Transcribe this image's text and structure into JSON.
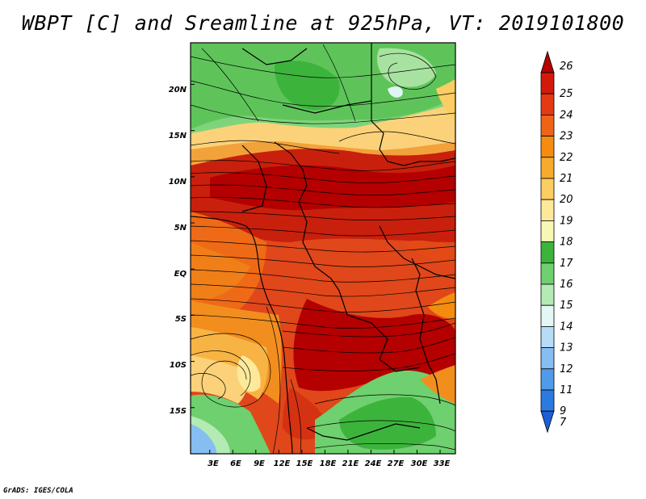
{
  "title": "WBPT [C] and Sreamline at 925hPa, VT: 2019101800",
  "credit": "GrADS: IGES/COLA",
  "map": {
    "lat_labels": [
      "20N",
      "15N",
      "10N",
      "5N",
      "EQ",
      "5S",
      "10S",
      "15S"
    ],
    "lat_values": [
      20,
      15,
      10,
      5,
      0,
      -5,
      -10,
      -15
    ],
    "lon_labels": [
      "3E",
      "6E",
      "9E",
      "12E",
      "15E",
      "18E",
      "21E",
      "24E",
      "27E",
      "30E",
      "33E"
    ],
    "lon_values": [
      3,
      6,
      9,
      12,
      15,
      18,
      21,
      24,
      27,
      30,
      33
    ],
    "lat_range": [
      -20,
      24.5
    ],
    "lon_range": [
      0.5,
      35
    ]
  },
  "colorbar": {
    "labels": [
      "26",
      "25",
      "24",
      "23",
      "22",
      "21",
      "20",
      "19",
      "18",
      "17",
      "16",
      "15",
      "14",
      "13",
      "12",
      "11",
      "9",
      "7"
    ],
    "colors": [
      "#b40000",
      "#d31a0a",
      "#e33a14",
      "#ef6414",
      "#f58c0f",
      "#f7ab2e",
      "#fbcd62",
      "#fde99a",
      "#f7f8b6",
      "#3cb43c",
      "#6ed06e",
      "#b4eab4",
      "#e4f7f7",
      "#b7dcf7",
      "#86bef2",
      "#4f9bea",
      "#2c7ae0",
      "#1a5fd6"
    ]
  }
}
